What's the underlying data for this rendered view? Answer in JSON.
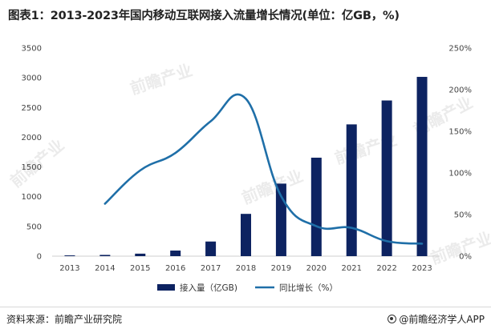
{
  "title": "图表1：2013-2023年国内移动互联网接入流量增长情况(单位：亿GB，%)",
  "footer": {
    "source": "资料来源：前瞻产业研究院",
    "brand": "@前瞻经济学人APP",
    "brand_icon": "qianzhan-logo-icon"
  },
  "watermark": "前瞻产业",
  "chart_data": {
    "type": "bar",
    "categories": [
      "2013",
      "2014",
      "2015",
      "2016",
      "2017",
      "2018",
      "2019",
      "2020",
      "2021",
      "2022",
      "2023"
    ],
    "series": [
      {
        "name": "接入量（亿GB)",
        "type": "bar",
        "axis": "left",
        "color": "#0d2361",
        "values": [
          13,
          21,
          42,
          94,
          246,
          711,
          1220,
          1656,
          2216,
          2618,
          3015
        ]
      },
      {
        "name": "同比增长（%）",
        "type": "line",
        "axis": "right",
        "color": "#1f6fa8",
        "values": [
          null,
          63,
          103,
          124,
          162,
          189,
          72,
          36,
          34,
          18,
          15
        ]
      }
    ],
    "y_left": {
      "ticks": [
        "0",
        "500",
        "1000",
        "1500",
        "2000",
        "2500",
        "3000",
        "3500"
      ],
      "ylim": [
        0,
        3500
      ]
    },
    "y_right": {
      "ticks": [
        "0%",
        "50%",
        "100%",
        "150%",
        "200%",
        "250%"
      ],
      "ylim": [
        0,
        250
      ]
    },
    "grid": false,
    "legend_position": "bottom"
  }
}
